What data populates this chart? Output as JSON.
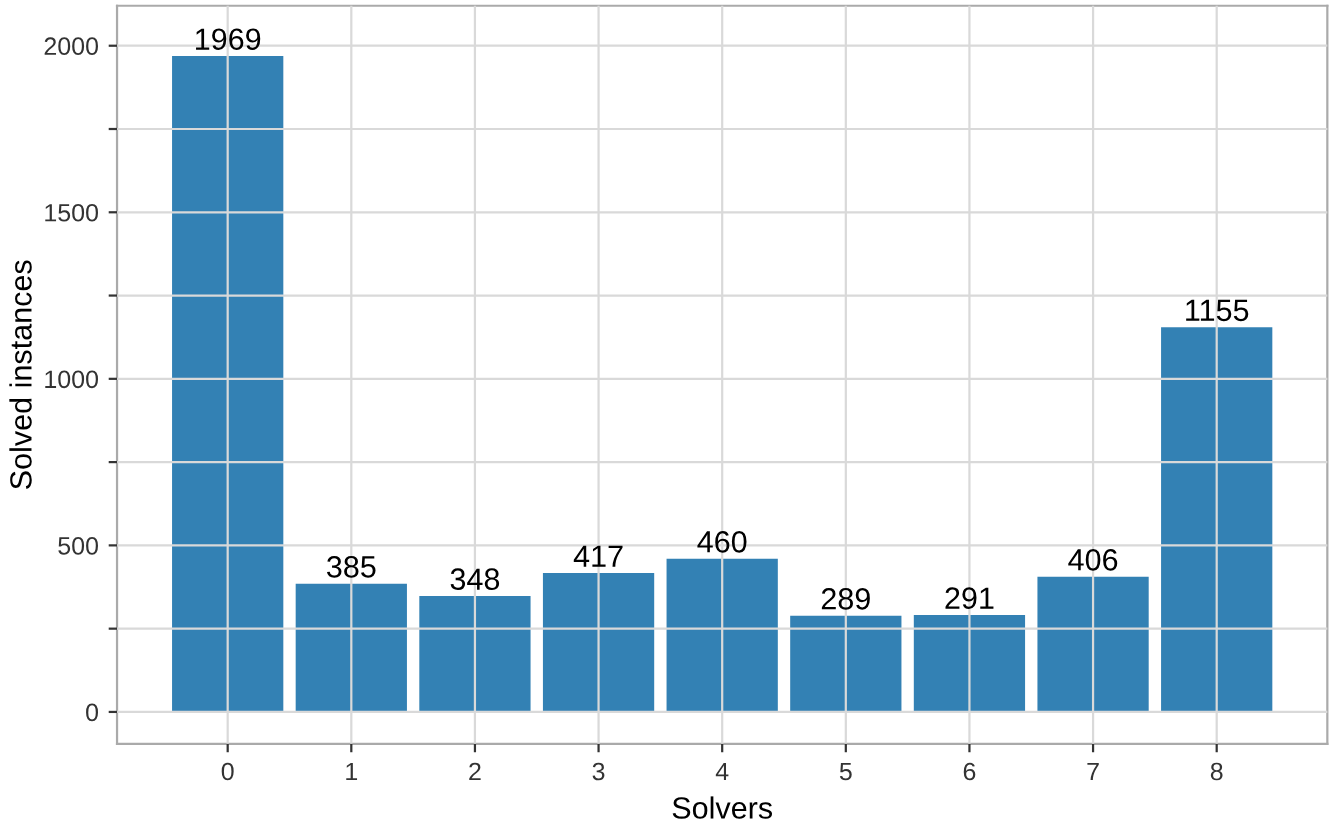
{
  "chart_data": {
    "type": "bar",
    "xlabel": "Solvers",
    "ylabel": "Solved instances",
    "categories": [
      "0",
      "1",
      "2",
      "3",
      "4",
      "5",
      "6",
      "7",
      "8"
    ],
    "values": [
      1969,
      385,
      348,
      417,
      460,
      289,
      291,
      406,
      1155
    ],
    "color": "#2f7eb3",
    "ylim": [
      -96,
      2120
    ],
    "yticks": [
      0,
      {
        "value": 250,
        "label": null
      },
      500,
      {
        "value": 750,
        "label": null
      },
      1000,
      {
        "value": 1250,
        "label": null
      },
      1500,
      {
        "value": 1750,
        "label": null
      },
      2000
    ],
    "data_labels": true,
    "grid": true
  }
}
